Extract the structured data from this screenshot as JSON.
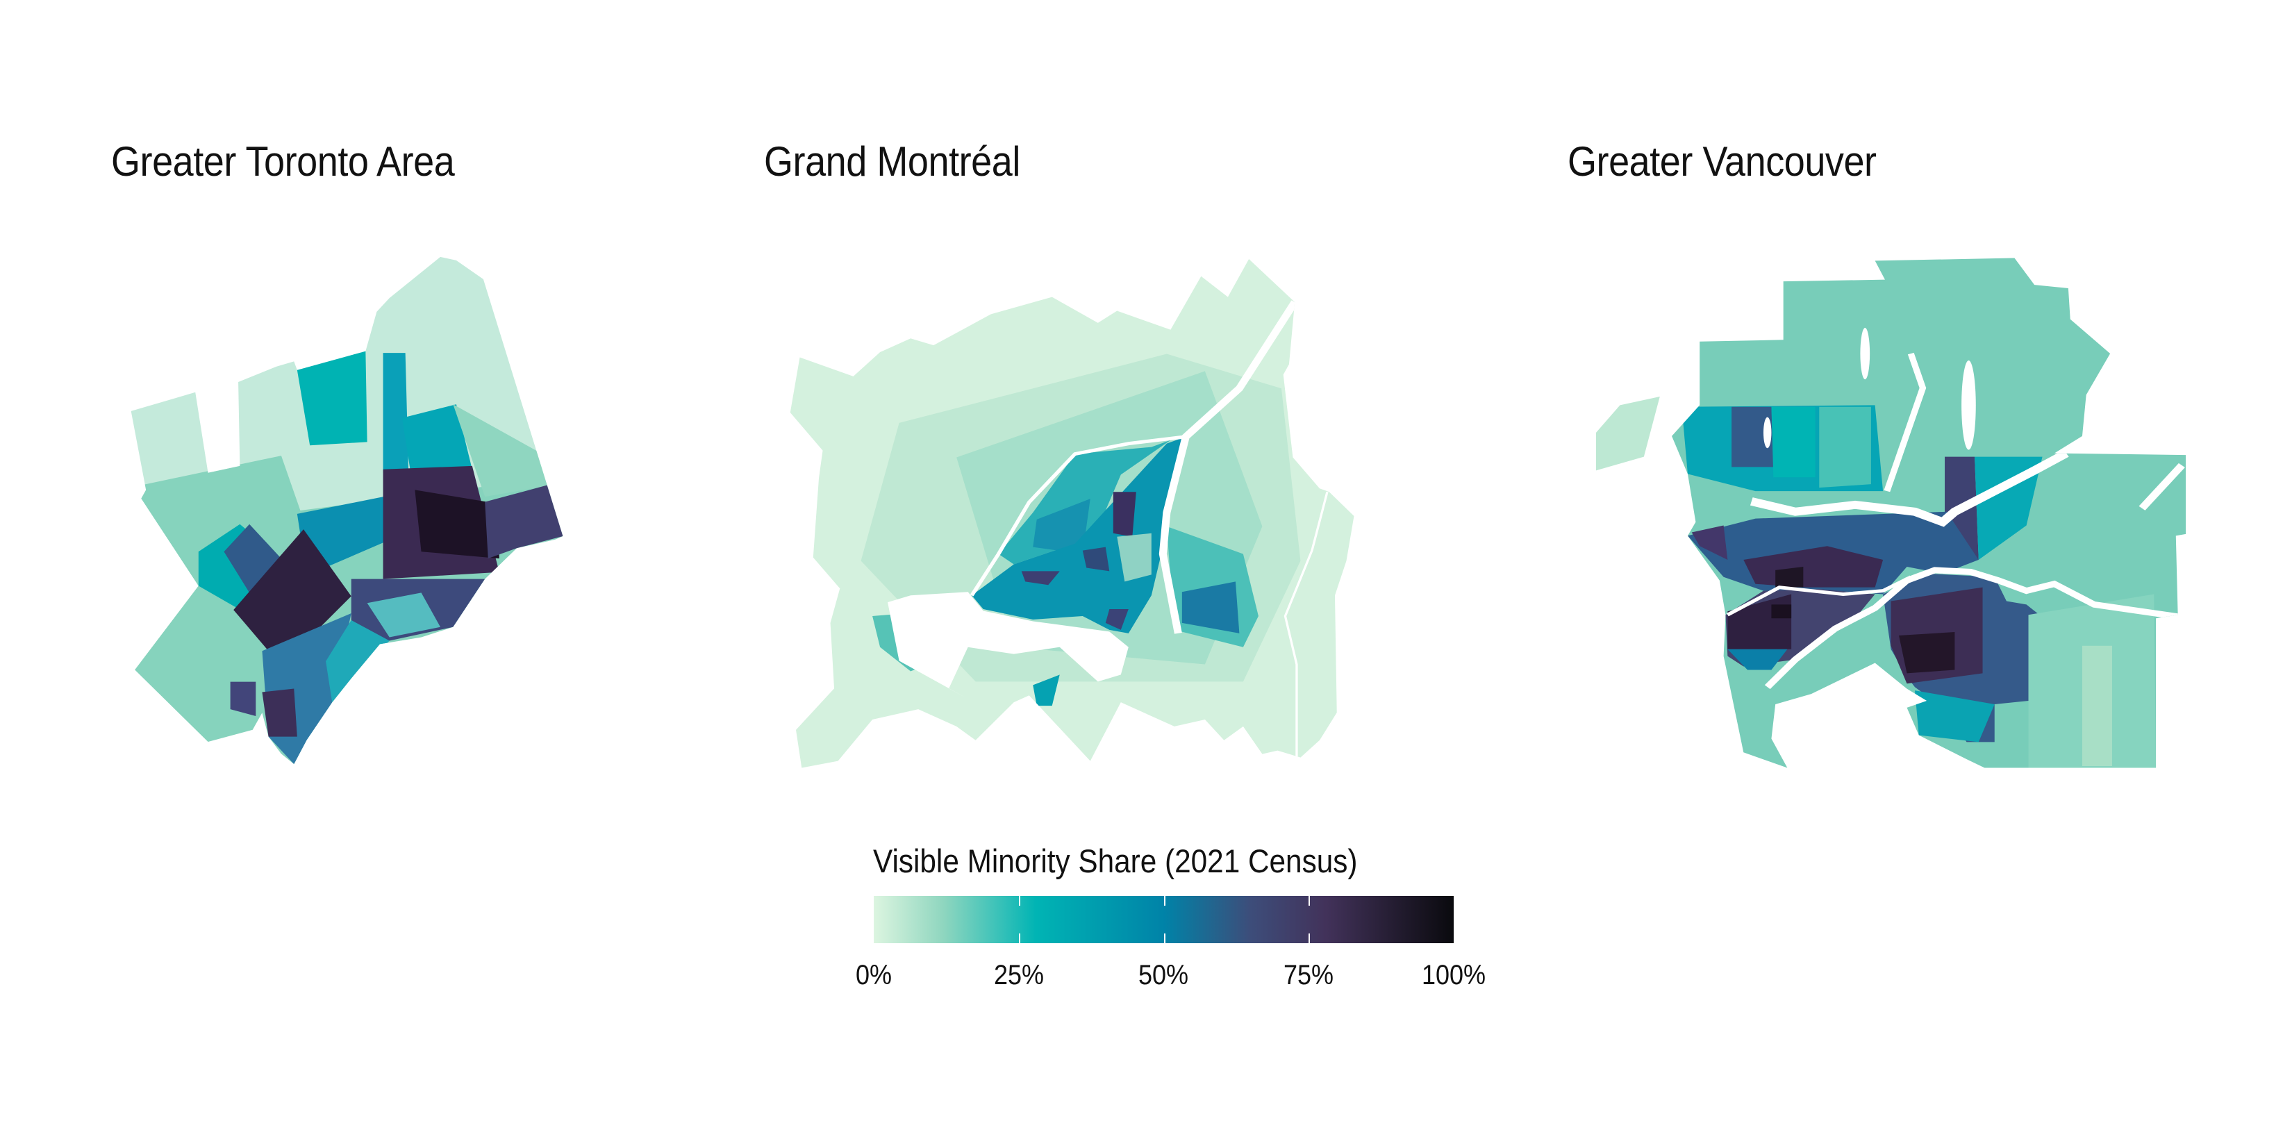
{
  "maps": [
    {
      "title": "Greater Toronto Area"
    },
    {
      "title": "Grand Montréal"
    },
    {
      "title": "Greater Vancouver"
    }
  ],
  "legend": {
    "title": "Visible Minority Share (2021 Census)",
    "ticks": [
      "0%",
      "25%",
      "50%",
      "75%",
      "100%"
    ],
    "tick_values": [
      0,
      25,
      50,
      75,
      100
    ],
    "color_stops": [
      {
        "value": 0,
        "color": "#dcf5e0"
      },
      {
        "value": 12,
        "color": "#8fd6bf"
      },
      {
        "value": 28,
        "color": "#00b4b4"
      },
      {
        "value": 50,
        "color": "#0083a8"
      },
      {
        "value": 65,
        "color": "#3d4d7a"
      },
      {
        "value": 78,
        "color": "#42325a"
      },
      {
        "value": 100,
        "color": "#0a0a0e"
      }
    ]
  }
}
